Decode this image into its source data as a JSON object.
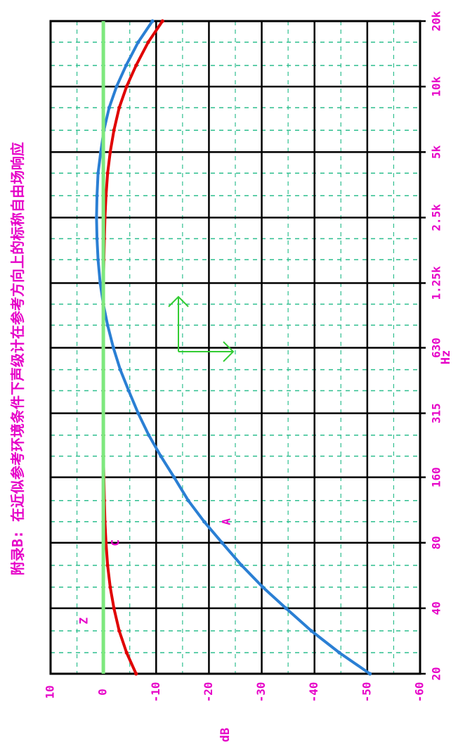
{
  "chart_data": {
    "type": "line",
    "title": "附录B: 在近似参考环境条件下声级计在参考方向上的标称自由场响应",
    "xlabel": "Hz",
    "ylabel": "dB",
    "x_scale": "log",
    "x_ticks": [
      20,
      40,
      80,
      160,
      315,
      630,
      1250,
      2500,
      5000,
      10000,
      20000
    ],
    "x_tick_labels": [
      "20",
      "40",
      "80",
      "160",
      "315",
      "630",
      "1.25k",
      "2.5k",
      "5k",
      "10k",
      "20k"
    ],
    "y_ticks": [
      10,
      0,
      -10,
      -20,
      -30,
      -40,
      -50,
      -60
    ],
    "y_tick_labels": [
      "10",
      "0",
      "-10",
      "-20",
      "-30",
      "-40",
      "-50",
      "-60"
    ],
    "xlim": [
      20,
      20000
    ],
    "ylim": [
      -60,
      10
    ],
    "grid": true,
    "series": [
      {
        "name": "A",
        "color": "#2a7fd4",
        "x": [
          20,
          25,
          31.5,
          40,
          50,
          63,
          80,
          100,
          125,
          160,
          200,
          250,
          315,
          400,
          500,
          630,
          800,
          1000,
          1250,
          1600,
          2000,
          2500,
          3150,
          4000,
          5000,
          6300,
          8000,
          10000,
          12500,
          16000,
          20000
        ],
        "y": [
          -50.5,
          -44.7,
          -39.4,
          -34.6,
          -30.2,
          -26.2,
          -22.5,
          -19.1,
          -16.1,
          -13.4,
          -10.9,
          -8.6,
          -6.6,
          -4.8,
          -3.2,
          -1.9,
          -0.8,
          0,
          0.6,
          1.0,
          1.2,
          1.3,
          1.2,
          1.0,
          0.5,
          -0.1,
          -1.1,
          -2.5,
          -4.3,
          -6.6,
          -9.3
        ]
      },
      {
        "name": "C",
        "color": "#e00000",
        "x": [
          20,
          25,
          31.5,
          40,
          50,
          63,
          80,
          100,
          125,
          160,
          200,
          250,
          315,
          400,
          500,
          630,
          800,
          1000,
          1250,
          1600,
          2000,
          2500,
          3150,
          4000,
          5000,
          6300,
          8000,
          10000,
          12500,
          16000,
          20000
        ],
        "y": [
          -6.2,
          -4.4,
          -3.0,
          -2.0,
          -1.3,
          -0.8,
          -0.5,
          -0.3,
          -0.2,
          -0.1,
          0,
          0,
          0,
          0,
          0,
          0,
          0,
          0,
          0,
          -0.1,
          -0.2,
          -0.3,
          -0.5,
          -0.8,
          -1.3,
          -2.0,
          -3.0,
          -4.4,
          -6.2,
          -8.5,
          -11.2
        ]
      },
      {
        "name": "Z",
        "color": "#7ee87e",
        "x": [
          20,
          20000
        ],
        "y": [
          0,
          0
        ]
      }
    ]
  }
}
